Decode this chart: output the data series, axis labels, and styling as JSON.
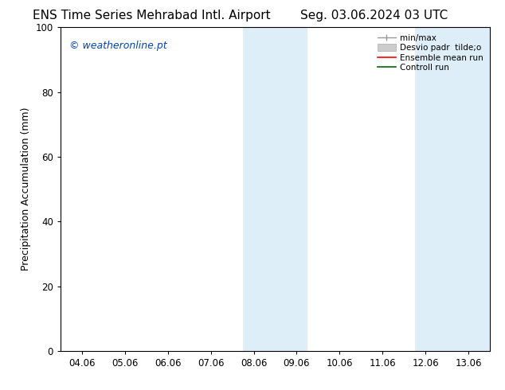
{
  "title_left": "ENS Time Series Mehrabad Intl. Airport",
  "title_right": "Seg. 03.06.2024 03 UTC",
  "ylabel": "Precipitation Accumulation (mm)",
  "ylim": [
    0,
    100
  ],
  "yticks": [
    0,
    20,
    40,
    60,
    80,
    100
  ],
  "x_tick_labels": [
    "04.06",
    "05.06",
    "06.06",
    "07.06",
    "08.06",
    "09.06",
    "10.06",
    "11.06",
    "12.06",
    "13.06"
  ],
  "x_tick_positions": [
    0,
    1,
    2,
    3,
    4,
    5,
    6,
    7,
    8,
    9
  ],
  "xlim": [
    -0.5,
    9.5
  ],
  "shaded_regions": [
    {
      "x_start": 3.75,
      "x_end": 5.25,
      "color": "#ddeef8"
    },
    {
      "x_start": 7.75,
      "x_end": 9.5,
      "color": "#ddeef8"
    }
  ],
  "watermark_text": "© weatheronline.pt",
  "watermark_color": "#0044bb",
  "background_color": "#ffffff",
  "plot_bg_color": "#ffffff",
  "legend_items": [
    {
      "label": "min/max"
    },
    {
      "label": "Desvio padr  tilde;o"
    },
    {
      "label": "Ensemble mean run"
    },
    {
      "label": "Controll run"
    }
  ],
  "title_fontsize": 11,
  "label_fontsize": 9,
  "tick_fontsize": 8.5,
  "watermark_fontsize": 9,
  "legend_fontsize": 7.5
}
